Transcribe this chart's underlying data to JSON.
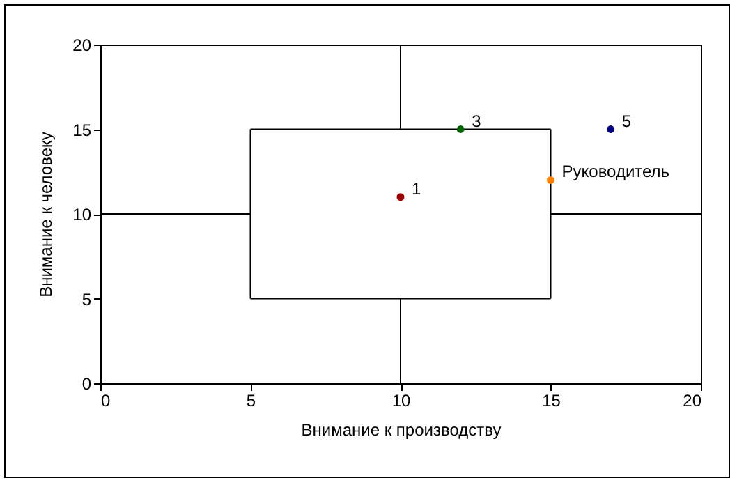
{
  "chart_data": {
    "type": "scatter",
    "xlabel": "Внимание к производству",
    "ylabel": "Внимание к человеку",
    "xlim": [
      0,
      20
    ],
    "ylim": [
      0,
      20
    ],
    "xticks": [
      0,
      5,
      10,
      15,
      20
    ],
    "yticks": [
      0,
      5,
      10,
      15,
      20
    ],
    "series": [
      {
        "type": "line",
        "color": "#000000",
        "marker": "none",
        "x": [
          5,
          15
        ],
        "values": [
          5,
          5
        ]
      },
      {
        "type": "line",
        "color": "#000000",
        "marker": "none",
        "x": [
          5,
          15
        ],
        "values": [
          15,
          15
        ]
      },
      {
        "type": "line",
        "color": "#000000",
        "marker": "none",
        "x": [
          5,
          5
        ],
        "values": [
          5,
          15
        ]
      },
      {
        "type": "line",
        "color": "#000000",
        "marker": "none",
        "x": [
          15,
          15
        ],
        "values": [
          5,
          15
        ]
      },
      {
        "type": "line",
        "color": "#000000",
        "marker": "none",
        "x": [
          10,
          10
        ],
        "values": [
          0,
          5
        ]
      },
      {
        "type": "line",
        "color": "#000000",
        "marker": "none",
        "x": [
          10,
          10
        ],
        "values": [
          15,
          20
        ]
      },
      {
        "type": "line",
        "color": "#000000",
        "marker": "none",
        "x": [
          0,
          5
        ],
        "values": [
          10,
          10
        ]
      },
      {
        "type": "line",
        "color": "#000000",
        "marker": "none",
        "x": [
          15,
          20
        ],
        "values": [
          10,
          10
        ]
      },
      {
        "name": "1",
        "color": "#990000",
        "marker": "circle",
        "x": [
          10
        ],
        "values": [
          11
        ]
      },
      {
        "name": "3",
        "color": "#006400",
        "marker": "circle",
        "x": [
          12
        ],
        "values": [
          15
        ]
      },
      {
        "name": "5",
        "color": "#000080",
        "marker": "circle",
        "x": [
          17
        ],
        "values": [
          15
        ]
      },
      {
        "name": "Руководитель",
        "color": "#ff8000",
        "marker": "circle",
        "x": [
          15
        ],
        "values": [
          12
        ]
      }
    ]
  }
}
